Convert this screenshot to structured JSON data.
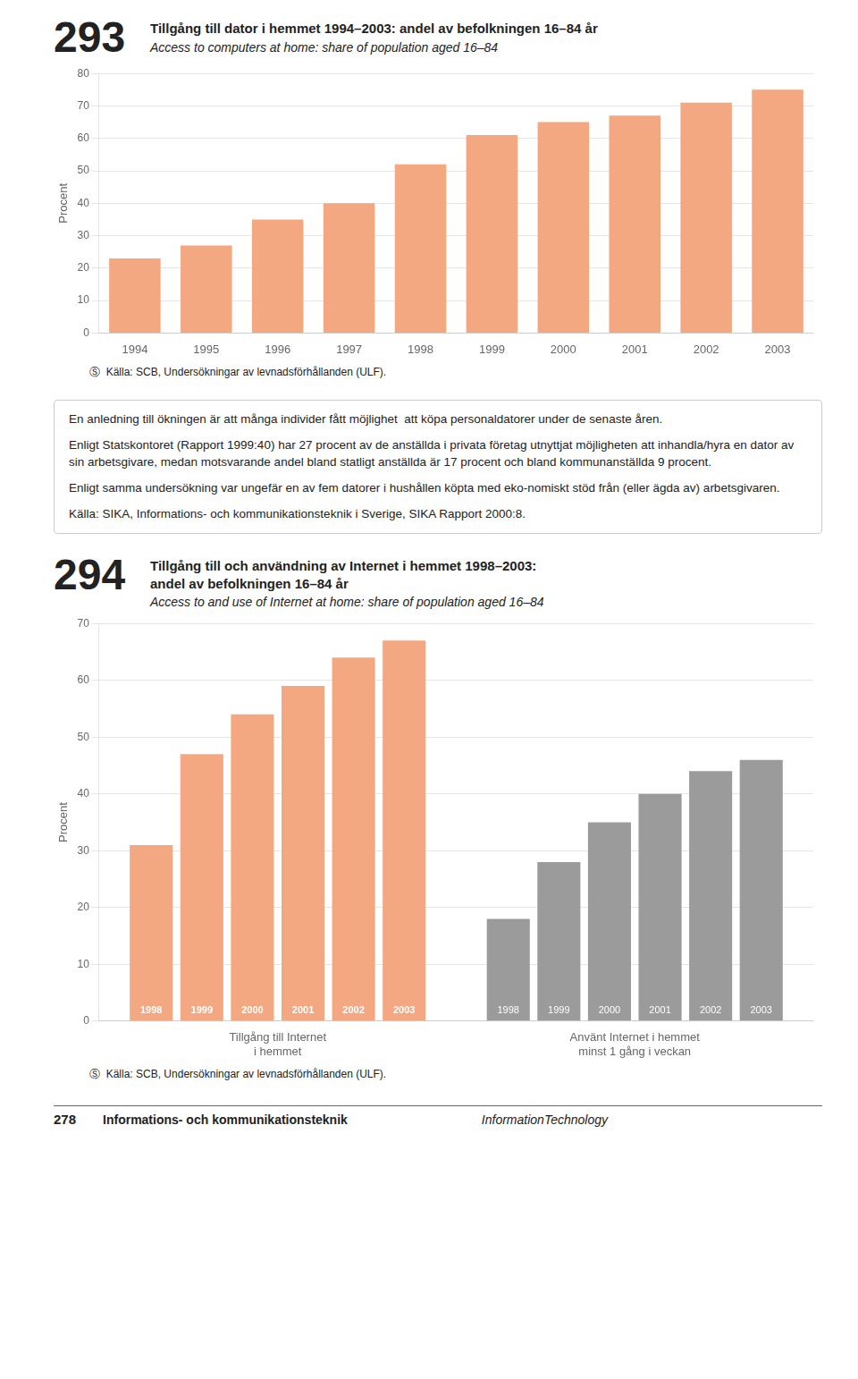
{
  "chart_data": [
    {
      "type": "bar",
      "number": "293",
      "title": "Tillgång till dator i hemmet 1994–2003: andel av befolkningen 16–84 år",
      "subtitle": "Access to computers at home: share of population aged 16–84",
      "ylabel": "Procent",
      "categories": [
        "1994",
        "1995",
        "1996",
        "1997",
        "1998",
        "1999",
        "2000",
        "2001",
        "2002",
        "2003"
      ],
      "values": [
        23,
        27,
        35,
        40,
        52,
        61,
        65,
        67,
        71,
        75
      ],
      "color": "#F4A882",
      "ylim": [
        0,
        80
      ],
      "yticks": [
        0,
        10,
        20,
        30,
        40,
        50,
        60,
        70,
        80
      ],
      "grid": true,
      "source": "Ⓢ  Källa: SCB, Undersökningar av levnadsförhållanden (ULF)."
    },
    {
      "type": "bar",
      "number": "294",
      "title": "Tillgång till och användning av Internet i hemmet 1998–2003:\nandel av befolkningen 16–84 år",
      "subtitle": "Access to and use of Internet at home: share of population aged 16–84",
      "ylabel": "Procent",
      "categories": [
        "Tillgång till Internet\ni hemmet",
        "Använt Internet i hemmet\nminst 1 gång i veckan"
      ],
      "series": [
        {
          "name": "1998",
          "values": [
            31,
            18
          ],
          "colors": [
            "#F4A882",
            "#9B9B9B"
          ]
        },
        {
          "name": "1999",
          "values": [
            47,
            28
          ],
          "colors": [
            "#F4A882",
            "#9B9B9B"
          ]
        },
        {
          "name": "2000",
          "values": [
            54,
            35
          ],
          "colors": [
            "#F4A882",
            "#9B9B9B"
          ]
        },
        {
          "name": "2001",
          "values": [
            59,
            40
          ],
          "colors": [
            "#F4A882",
            "#9B9B9B"
          ]
        },
        {
          "name": "2002",
          "values": [
            64,
            44
          ],
          "colors": [
            "#F4A882",
            "#9B9B9B"
          ]
        },
        {
          "name": "2003",
          "values": [
            67,
            46
          ],
          "colors": [
            "#F4A882",
            "#9B9B9B"
          ]
        }
      ],
      "ylim": [
        0,
        70
      ],
      "yticks": [
        0,
        10,
        20,
        30,
        40,
        50,
        60,
        70
      ],
      "grid": true,
      "source": "Ⓢ  Källa: SCB, Undersökningar av levnadsförhållanden (ULF)."
    }
  ],
  "text_box": [
    "En anledning till ökningen är att många individer fått möjlighet  att köpa personaldatorer under de senaste åren.",
    "Enligt Statskontoret (Rapport 1999:40) har 27 procent av de anställda i privata företag utnyttjat möjligheten att inhandla/hyra en dator av sin arbetsgivare, medan motsvarande andel bland statligt anställda är 17 procent och bland kommunanställda 9 procent.",
    "Enligt samma undersökning var ungefär en av fem datorer i hushållen köpta med eko-nomiskt stöd från (eller ägda av) arbetsgivaren.",
    "Källa: SIKA, Informations- och kommunikationsteknik i Sverige, SIKA Rapport 2000:8."
  ],
  "footer": [
    "278",
    "Informations- och kommunikationsteknik",
    "InformationTechnology"
  ]
}
